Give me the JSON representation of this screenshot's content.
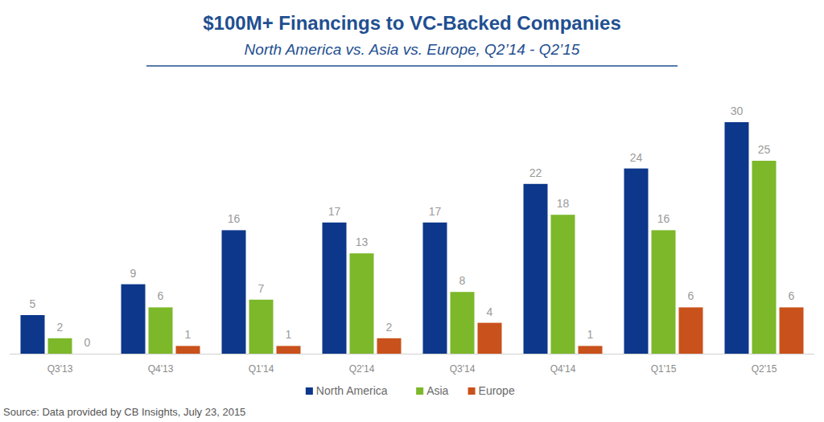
{
  "chart_data": {
    "type": "bar",
    "title": "$100M+ Financings to VC-Backed Companies",
    "subtitle": "North America vs. Asia vs. Europe, Q2’14 - Q2’15",
    "source": "Source: Data provided by CB Insights, July 23, 2015",
    "categories": [
      "Q3'13",
      "Q4'13",
      "Q1'14",
      "Q2'14",
      "Q3'14",
      "Q4'14",
      "Q1'15",
      "Q2'15"
    ],
    "series": [
      {
        "name": "North America",
        "color": "#0c378a",
        "values": [
          5,
          9,
          16,
          17,
          17,
          22,
          24,
          30
        ]
      },
      {
        "name": "Asia",
        "color": "#7cb82a",
        "values": [
          2,
          6,
          7,
          13,
          8,
          18,
          16,
          25
        ]
      },
      {
        "name": "Europe",
        "color": "#c9511b",
        "values": [
          0,
          1,
          1,
          2,
          4,
          1,
          6,
          6
        ]
      }
    ],
    "ylim": [
      0,
      30
    ],
    "tick_labels": "x",
    "data_labels": true,
    "legend": "bottom",
    "grid": false
  }
}
